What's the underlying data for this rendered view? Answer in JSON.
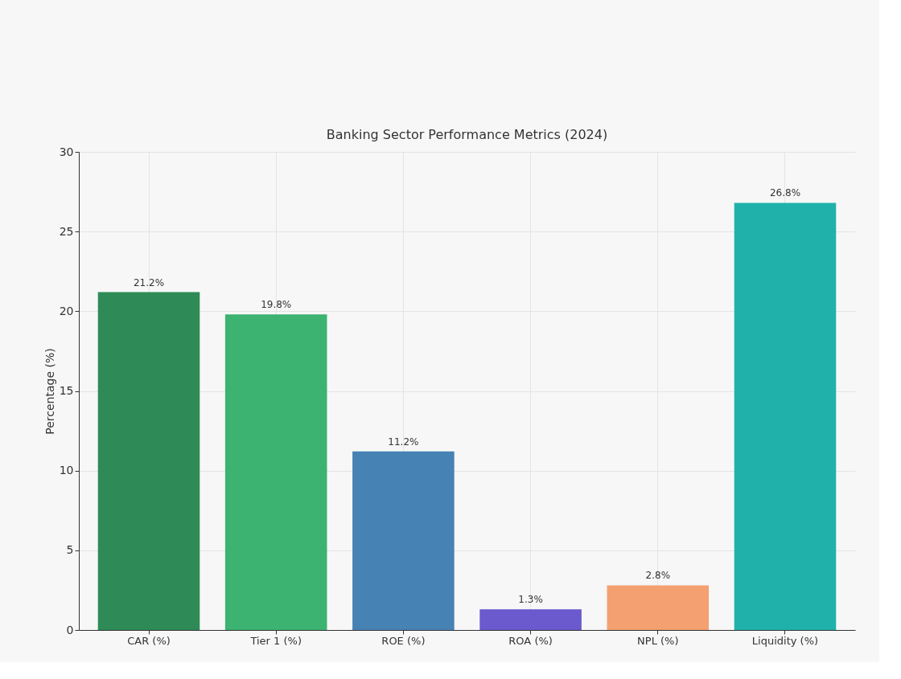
{
  "chart_data": {
    "type": "bar",
    "title": "Banking Sector Performance Metrics (2024)",
    "ylabel": "Percentage (%)",
    "categories": [
      "CAR (%)",
      "Tier 1 (%)",
      "ROE (%)",
      "ROA (%)",
      "NPL (%)",
      "Liquidity (%)"
    ],
    "values": [
      21.2,
      19.8,
      11.2,
      1.3,
      2.8,
      26.8
    ],
    "colors": [
      "#2e8b57",
      "#3cb371",
      "#4682b4",
      "#6a5acd",
      "#f4a070",
      "#20b2aa"
    ],
    "value_labels": [
      "21.2%",
      "19.8%",
      "11.2%",
      "1.3%",
      "2.8%",
      "26.8%"
    ],
    "ylim": [
      0,
      30
    ],
    "yticks": [
      0,
      5,
      10,
      15,
      20,
      25,
      30
    ],
    "grid": true,
    "legend": false
  }
}
